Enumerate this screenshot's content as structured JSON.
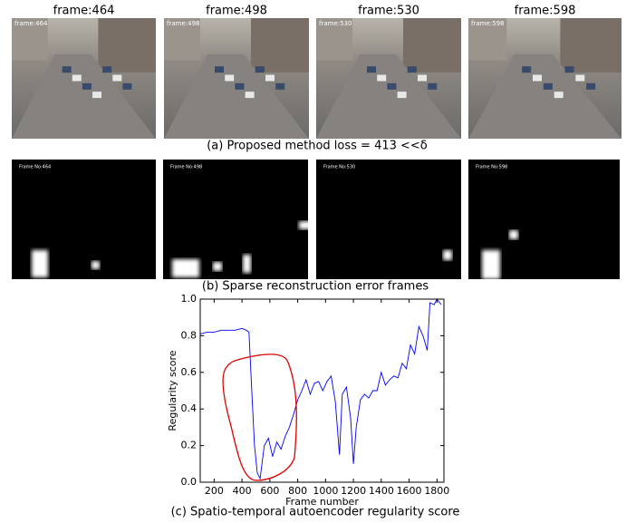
{
  "panel_a": {
    "frames": [
      {
        "title": "frame:464",
        "overlay": "frame:464"
      },
      {
        "title": "frame:498",
        "overlay": "frame:498"
      },
      {
        "title": "frame:530",
        "overlay": "frame:530"
      },
      {
        "title": "frame:598",
        "overlay": "frame:598"
      }
    ],
    "caption": "(a) Proposed method loss = 413 <<δ"
  },
  "panel_b": {
    "frames": [
      "Frame No:464",
      "Frame No:498",
      "Frame No:530",
      "Frame No:598"
    ],
    "caption": "(b) Sparse reconstruction error frames"
  },
  "chart_data": {
    "type": "line",
    "caption": "(c) Spatio-temporal autoencoder regularity score",
    "xlabel": "Frame number",
    "ylabel": "Regularity score",
    "color": "#0000ff",
    "x": [
      100,
      150,
      200,
      250,
      300,
      350,
      400,
      430,
      450,
      470,
      490,
      510,
      530,
      560,
      590,
      620,
      650,
      680,
      710,
      740,
      770,
      800,
      830,
      860,
      890,
      920,
      950,
      980,
      1010,
      1040,
      1070,
      1100,
      1120,
      1150,
      1180,
      1200,
      1220,
      1250,
      1280,
      1310,
      1340,
      1370,
      1400,
      1430,
      1460,
      1490,
      1520,
      1550,
      1580,
      1610,
      1640,
      1670,
      1700,
      1730,
      1750,
      1780,
      1800,
      1830
    ],
    "values": [
      0.81,
      0.82,
      0.82,
      0.83,
      0.83,
      0.83,
      0.84,
      0.83,
      0.82,
      0.5,
      0.2,
      0.05,
      0.02,
      0.2,
      0.24,
      0.14,
      0.22,
      0.18,
      0.25,
      0.3,
      0.37,
      0.45,
      0.5,
      0.56,
      0.48,
      0.54,
      0.55,
      0.5,
      0.55,
      0.58,
      0.44,
      0.15,
      0.48,
      0.52,
      0.35,
      0.1,
      0.3,
      0.45,
      0.48,
      0.46,
      0.5,
      0.5,
      0.6,
      0.53,
      0.56,
      0.58,
      0.57,
      0.65,
      0.62,
      0.75,
      0.7,
      0.85,
      0.8,
      0.72,
      0.98,
      0.97,
      1.0,
      0.97
    ],
    "xlim": [
      100,
      1850
    ],
    "ylim": [
      0,
      1
    ],
    "xticks": [
      200,
      400,
      600,
      800,
      1000,
      1200,
      1400,
      1600,
      1800
    ],
    "yticks": [
      {
        "value": 0,
        "label": "0.0"
      },
      {
        "value": 0.2,
        "label": "0.2"
      },
      {
        "value": 0.4,
        "label": "0.4"
      },
      {
        "value": 0.6,
        "label": "0.6"
      },
      {
        "value": 0.8,
        "label": "0.8"
      },
      {
        "value": 1,
        "label": "1.0"
      }
    ]
  }
}
